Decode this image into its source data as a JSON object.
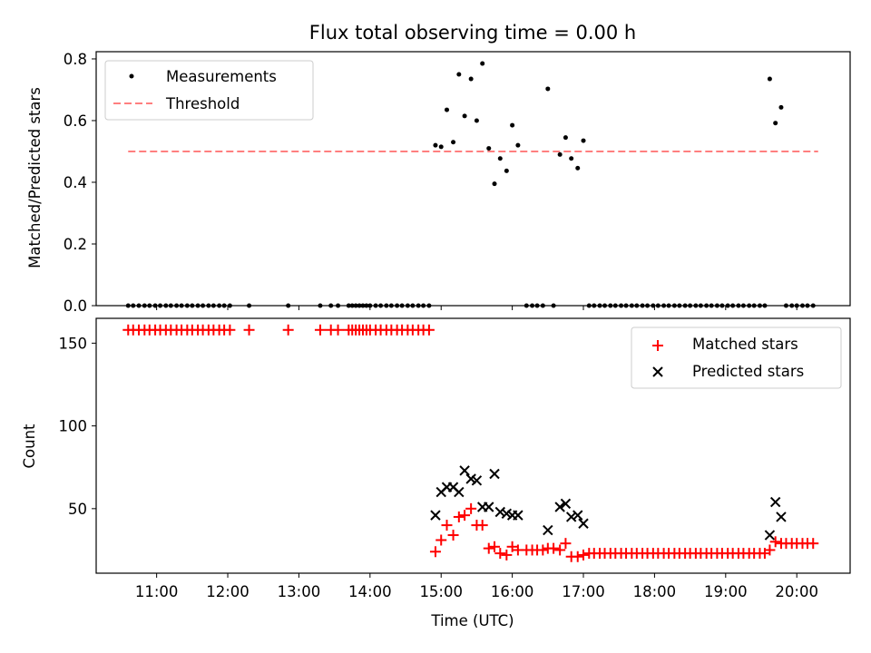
{
  "colors": {
    "measurement": "#000000",
    "threshold": "#ff7f7f",
    "matched": "#ff0000",
    "predicted": "#000000"
  },
  "chart_data": [
    {
      "type": "scatter",
      "title": "Flux total observing time = 0.00 h",
      "ylabel": "Matched/Predicted stars",
      "xlabel": "",
      "xlim": [
        10.15,
        20.75
      ],
      "ylim": [
        0,
        0.8234
      ],
      "yticks": [
        0.0,
        0.2,
        0.4,
        0.6,
        0.8
      ],
      "ytick_labels": [
        "0.0",
        "0.2",
        "0.4",
        "0.6",
        "0.8"
      ],
      "legend": {
        "placement": "top-left",
        "entries": [
          "Measurements",
          "Threshold"
        ]
      },
      "threshold": {
        "name": "Threshold",
        "y": 0.5,
        "x": [
          10.6,
          20.3
        ]
      },
      "series": [
        {
          "name": "Measurements",
          "x": [
            10.6,
            10.67,
            10.75,
            10.83,
            10.9,
            10.98,
            11.05,
            11.13,
            11.2,
            11.28,
            11.35,
            11.43,
            11.5,
            11.58,
            11.65,
            11.73,
            11.8,
            11.88,
            11.95,
            12.03,
            12.3,
            12.85,
            13.3,
            13.45,
            13.55,
            13.7,
            13.75,
            13.8,
            13.85,
            13.9,
            13.95,
            14.0,
            14.08,
            14.15,
            14.23,
            14.3,
            14.38,
            14.45,
            14.53,
            14.6,
            14.68,
            14.75,
            14.83,
            14.92,
            15.0,
            15.08,
            15.17,
            15.25,
            15.33,
            15.42,
            15.5,
            15.58,
            15.67,
            15.75,
            15.83,
            15.92,
            16.0,
            16.08,
            16.2,
            16.28,
            16.35,
            16.43,
            16.5,
            16.58,
            16.67,
            16.75,
            16.83,
            16.92,
            17.0,
            17.08,
            17.15,
            17.23,
            17.3,
            17.38,
            17.45,
            17.53,
            17.6,
            17.68,
            17.75,
            17.83,
            17.9,
            17.98,
            18.05,
            18.13,
            18.2,
            18.28,
            18.35,
            18.43,
            18.5,
            18.58,
            18.65,
            18.73,
            18.8,
            18.88,
            18.95,
            19.03,
            19.1,
            19.18,
            19.25,
            19.33,
            19.4,
            19.48,
            19.55,
            19.62,
            19.7,
            19.78,
            19.85,
            19.93,
            20.0,
            20.08,
            20.15,
            20.23
          ],
          "y": [
            0,
            0,
            0,
            0,
            0,
            0,
            0,
            0,
            0,
            0,
            0,
            0,
            0,
            0,
            0,
            0,
            0,
            0,
            0,
            0,
            0,
            0,
            0,
            0,
            0,
            0,
            0,
            0,
            0,
            0,
            0,
            0,
            0,
            0,
            0,
            0,
            0,
            0,
            0,
            0,
            0,
            0,
            0,
            0.52,
            0.515,
            0.635,
            0.53,
            0.75,
            0.615,
            0.735,
            0.6,
            0.785,
            0.51,
            0.395,
            0.477,
            0.437,
            0.585,
            0.52,
            0,
            0,
            0,
            0,
            0.703,
            0,
            0.49,
            0.545,
            0.477,
            0.446,
            0.535,
            0,
            0,
            0,
            0,
            0,
            0,
            0,
            0,
            0,
            0,
            0,
            0,
            0,
            0,
            0,
            0,
            0,
            0,
            0,
            0,
            0,
            0,
            0,
            0,
            0,
            0,
            0,
            0,
            0,
            0,
            0,
            0,
            0,
            0,
            0.735,
            0.592,
            0.643,
            0,
            0,
            0,
            0,
            0,
            0
          ]
        }
      ]
    },
    {
      "type": "scatter",
      "title": "",
      "xlabel": "Time (UTC)",
      "ylabel": "Count",
      "xlim": [
        10.15,
        20.75
      ],
      "ylim": [
        11,
        165
      ],
      "xticks": [
        11,
        12,
        13,
        14,
        15,
        16,
        17,
        18,
        19,
        20
      ],
      "xtick_labels": [
        "11:00",
        "12:00",
        "13:00",
        "14:00",
        "15:00",
        "16:00",
        "17:00",
        "18:00",
        "19:00",
        "20:00"
      ],
      "yticks": [
        50,
        100,
        150
      ],
      "ytick_labels": [
        "50",
        "100",
        "150"
      ],
      "legend": {
        "placement": "top-right",
        "entries": [
          "Matched stars",
          "Predicted stars"
        ]
      },
      "series": [
        {
          "name": "Matched stars",
          "marker": "plus",
          "x": [
            10.6,
            10.67,
            10.75,
            10.83,
            10.9,
            10.98,
            11.05,
            11.13,
            11.2,
            11.28,
            11.35,
            11.43,
            11.5,
            11.58,
            11.65,
            11.73,
            11.8,
            11.88,
            11.95,
            12.03,
            12.3,
            12.85,
            13.3,
            13.45,
            13.55,
            13.7,
            13.75,
            13.8,
            13.85,
            13.9,
            13.95,
            14.0,
            14.08,
            14.15,
            14.23,
            14.3,
            14.38,
            14.45,
            14.53,
            14.6,
            14.68,
            14.75,
            14.83,
            14.92,
            15.0,
            15.08,
            15.17,
            15.25,
            15.33,
            15.42,
            15.5,
            15.58,
            15.67,
            15.75,
            15.83,
            15.92,
            16.0,
            16.08,
            16.2,
            16.28,
            16.35,
            16.43,
            16.5,
            16.58,
            16.67,
            16.75,
            16.83,
            16.92,
            17.0,
            17.08,
            17.15,
            17.23,
            17.3,
            17.38,
            17.45,
            17.53,
            17.6,
            17.68,
            17.75,
            17.83,
            17.9,
            17.98,
            18.05,
            18.13,
            18.2,
            18.28,
            18.35,
            18.43,
            18.5,
            18.58,
            18.65,
            18.73,
            18.8,
            18.88,
            18.95,
            19.03,
            19.1,
            19.18,
            19.25,
            19.33,
            19.4,
            19.48,
            19.55,
            19.62,
            19.7,
            19.78,
            19.85,
            19.93,
            20.0,
            20.08,
            20.15,
            20.23
          ],
          "y": [
            158,
            158,
            158,
            158,
            158,
            158,
            158,
            158,
            158,
            158,
            158,
            158,
            158,
            158,
            158,
            158,
            158,
            158,
            158,
            158,
            158,
            158,
            158,
            158,
            158,
            158,
            158,
            158,
            158,
            158,
            158,
            158,
            158,
            158,
            158,
            158,
            158,
            158,
            158,
            158,
            158,
            158,
            158,
            24,
            31,
            40,
            34,
            45,
            46,
            50,
            40,
            40,
            26,
            27,
            23,
            22,
            27,
            25,
            25,
            25,
            25,
            25,
            26,
            26,
            25,
            29,
            21,
            21,
            22,
            23,
            23,
            23,
            23,
            23,
            23,
            23,
            23,
            23,
            23,
            23,
            23,
            23,
            23,
            23,
            23,
            23,
            23,
            23,
            23,
            23,
            23,
            23,
            23,
            23,
            23,
            23,
            23,
            23,
            23,
            23,
            23,
            23,
            23,
            25,
            30,
            29,
            29,
            29,
            29,
            29,
            29,
            29
          ]
        },
        {
          "name": "Predicted stars",
          "marker": "x",
          "x": [
            14.92,
            15.0,
            15.08,
            15.17,
            15.25,
            15.33,
            15.42,
            15.5,
            15.58,
            15.67,
            15.75,
            15.83,
            15.92,
            16.0,
            16.08,
            16.5,
            16.67,
            16.75,
            16.83,
            16.92,
            17.0,
            19.62,
            19.7,
            19.78
          ],
          "y": [
            46,
            60,
            63,
            63,
            60,
            73,
            68,
            67,
            51,
            51,
            71,
            48,
            47,
            46,
            46,
            37,
            51,
            53,
            45,
            46,
            41,
            34,
            54,
            45
          ]
        }
      ]
    }
  ]
}
